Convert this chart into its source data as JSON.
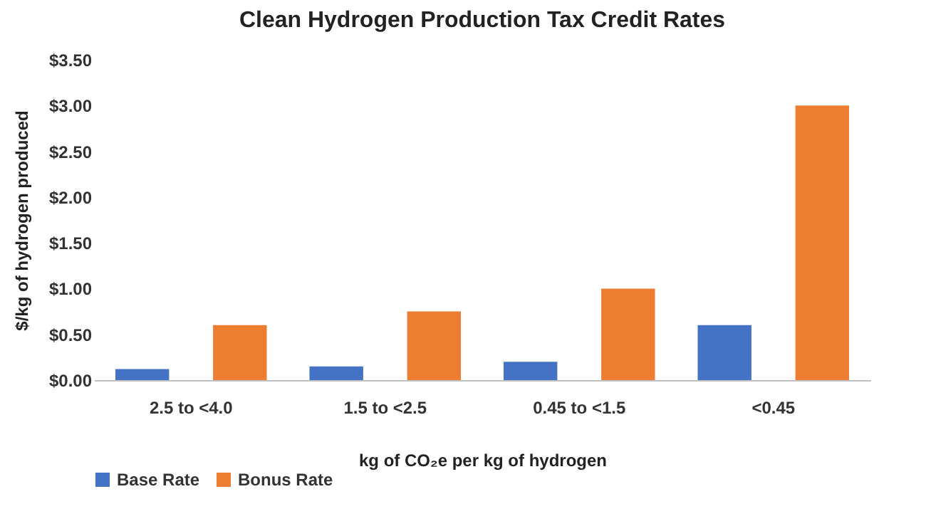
{
  "chart_data": {
    "type": "bar",
    "title": "Clean Hydrogen Production Tax Credit Rates",
    "xlabel": "kg of CO₂e per kg of hydrogen",
    "ylabel": "$/kg of hydrogen produced",
    "categories": [
      "2.5 to <4.0",
      "1.5 to <2.5",
      "0.45 to <1.5",
      "<0.45"
    ],
    "series": [
      {
        "name": "Base Rate",
        "color": "#4472c4",
        "values": [
          0.12,
          0.15,
          0.2,
          0.6
        ]
      },
      {
        "name": "Bonus Rate",
        "color": "#ed7d31",
        "values": [
          0.6,
          0.75,
          1.0,
          3.0
        ]
      }
    ],
    "ylim": [
      0,
      3.5
    ],
    "yticks": [
      {
        "value": 0,
        "label": "$0.00"
      },
      {
        "value": 0.5,
        "label": "$0.50"
      },
      {
        "value": 1,
        "label": "$1.00"
      },
      {
        "value": 1.5,
        "label": "$1.50"
      },
      {
        "value": 2,
        "label": "$2.00"
      },
      {
        "value": 2.5,
        "label": "$2.50"
      },
      {
        "value": 3,
        "label": "$3.00"
      },
      {
        "value": 3.5,
        "label": "$3.50"
      }
    ],
    "grid": false,
    "legend": "bottom"
  }
}
